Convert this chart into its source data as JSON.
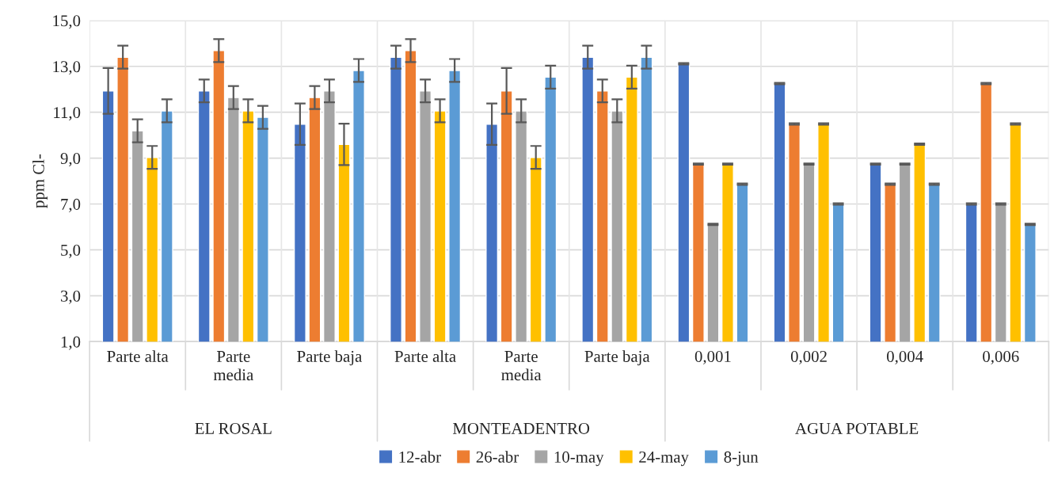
{
  "chart_data": {
    "type": "bar",
    "ylabel": "ppm Cl-",
    "categories": [
      "Parte alta",
      "Parte media",
      "Parte baja",
      "Parte alta",
      "Parte media",
      "Parte baja",
      "0,001",
      "0,002",
      "0,004",
      "0,006"
    ],
    "annotations": [
      "EL ROSAL",
      "MONTEADENTRO",
      "AGUA POTABLE"
    ],
    "series": [
      {
        "name": "12-abr",
        "color": "#4472c4",
        "values": [
          11.93,
          11.93,
          10.48,
          13.4,
          10.48,
          13.4,
          13.11,
          12.25,
          8.74,
          7.0
        ],
        "errors": [
          1.0,
          0.5,
          0.9,
          0.5,
          0.9,
          0.5,
          0.03,
          0.03,
          0.03,
          0.03
        ]
      },
      {
        "name": "26-abr",
        "color": "#ed7d31",
        "values": [
          13.4,
          13.69,
          11.64,
          13.69,
          11.93,
          11.93,
          8.74,
          10.49,
          7.86,
          12.25
        ],
        "errors": [
          0.5,
          0.5,
          0.5,
          0.5,
          1.0,
          0.5,
          0.03,
          0.03,
          0.03,
          0.03
        ]
      },
      {
        "name": "10-may",
        "color": "#a5a5a5",
        "values": [
          10.19,
          11.64,
          11.93,
          11.93,
          11.06,
          11.06,
          6.11,
          8.74,
          8.74,
          7.0
        ],
        "errors": [
          0.5,
          0.5,
          0.5,
          0.5,
          0.5,
          0.5,
          0.03,
          0.03,
          0.03,
          0.03
        ]
      },
      {
        "name": "24-may",
        "color": "#ffc000",
        "values": [
          9.03,
          11.06,
          9.6,
          11.06,
          9.03,
          12.53,
          8.74,
          10.49,
          9.61,
          10.49
        ],
        "errors": [
          0.5,
          0.5,
          0.9,
          0.5,
          0.5,
          0.5,
          0.03,
          0.03,
          0.03,
          0.03
        ]
      },
      {
        "name": "8-jun",
        "color": "#5b9bd5",
        "values": [
          11.06,
          10.78,
          12.82,
          12.82,
          12.53,
          13.4,
          7.86,
          7.0,
          7.86,
          6.11
        ],
        "errors": [
          0.5,
          0.5,
          0.5,
          0.5,
          0.5,
          0.5,
          0.03,
          0.03,
          0.03,
          0.03
        ]
      }
    ],
    "ylim": [
      1,
      15
    ],
    "yticks": [
      {
        "value": 1,
        "label": "1,0"
      },
      {
        "value": 3,
        "label": "3,0"
      },
      {
        "value": 5,
        "label": "5,0"
      },
      {
        "value": 7,
        "label": "7,0"
      },
      {
        "value": 9,
        "label": "9,0"
      },
      {
        "value": 11,
        "label": "11,0"
      },
      {
        "value": 13,
        "label": "13,0"
      },
      {
        "value": 15,
        "label": "15,0"
      }
    ],
    "grid": true,
    "legend": "bottom"
  }
}
